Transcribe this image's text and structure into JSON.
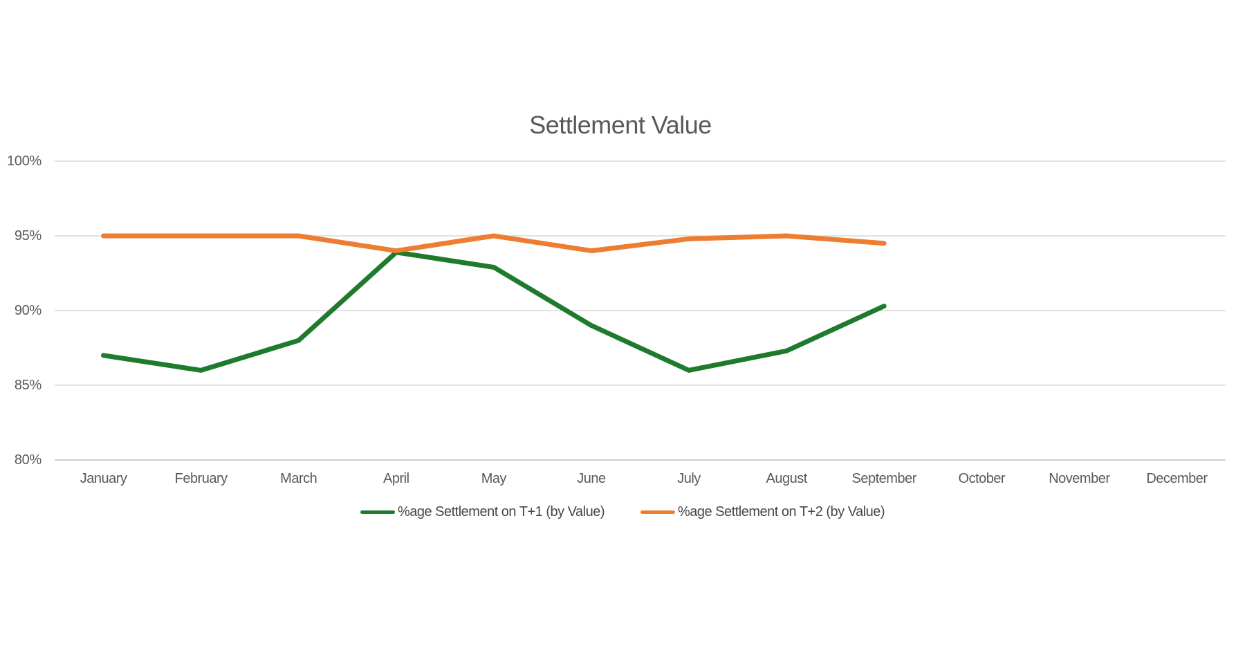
{
  "chart": {
    "title": "Settlement Value",
    "y_axis": {
      "tick_labels": [
        "100%",
        "95%",
        "90%",
        "85%",
        "80%"
      ]
    },
    "colors": {
      "series_t1_green": "#1e7b2d",
      "series_t2_orange": "#ed7d31",
      "gridline": "#d9d9d9",
      "axis_line": "#c0c0c0",
      "text": "#595959"
    }
  },
  "chart_data": {
    "type": "line",
    "title": "Settlement Value",
    "categories": [
      "January",
      "February",
      "March",
      "April",
      "May",
      "June",
      "July",
      "August",
      "September",
      "October",
      "November",
      "December"
    ],
    "series": [
      {
        "name": "%age Settlement on T+1 (by Value)",
        "color": "#1e7b2d",
        "values": [
          87,
          86,
          88,
          93.9,
          92.9,
          89,
          86,
          87.3,
          90.3,
          null,
          null,
          null
        ]
      },
      {
        "name": "%age Settlement on T+2 (by Value)",
        "color": "#ed7d31",
        "values": [
          95,
          95,
          95,
          94,
          95,
          94,
          94.8,
          95,
          94.5,
          null,
          null,
          null
        ]
      }
    ],
    "xlabel": "",
    "ylabel": "",
    "ylim": [
      80,
      100
    ],
    "ytick_step": 5,
    "ytick_format": "percent",
    "grid": "horizontal",
    "legend_position": "bottom"
  }
}
